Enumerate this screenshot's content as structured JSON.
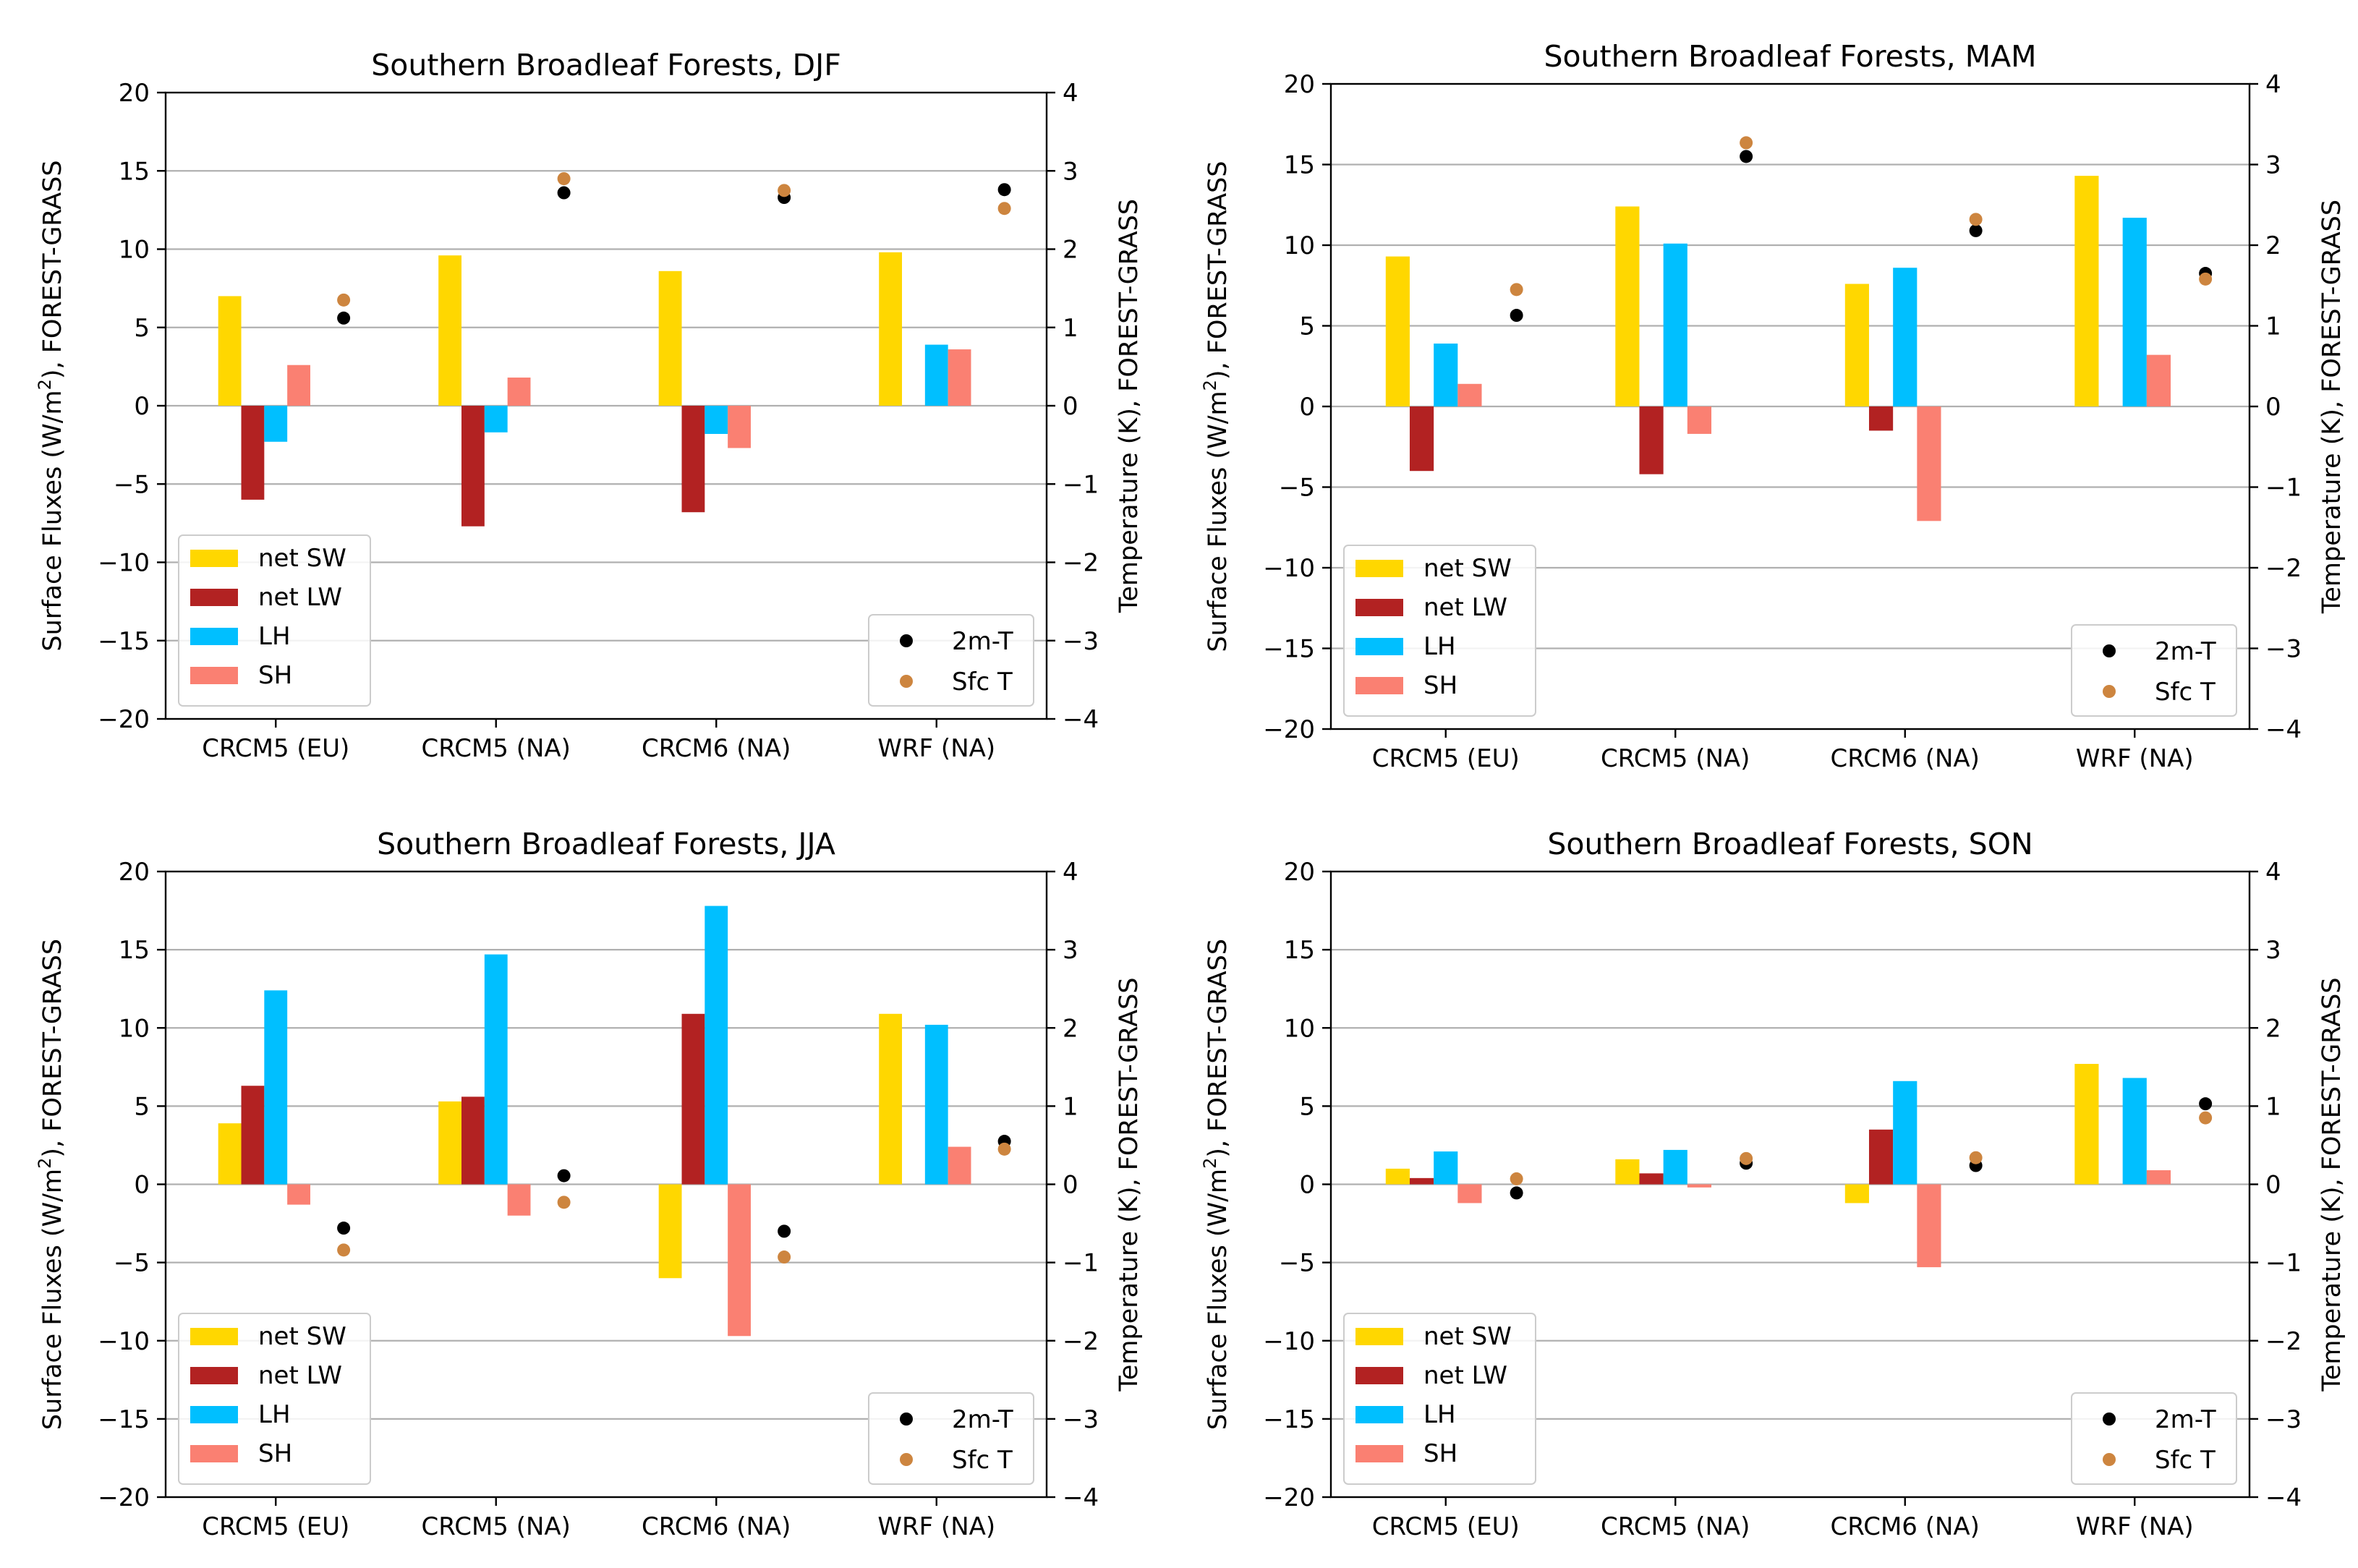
{
  "figure": {
    "category_labels": [
      "CRCM5 (EU)",
      "CRCM5 (NA)",
      "CRCM6 (NA)",
      "WRF (NA)"
    ],
    "left_axis_label_prefix": "Surface Fluxes (W/m",
    "left_axis_label_sup": "2",
    "left_axis_label_suffix": "), FOREST-GRASS",
    "right_axis_label": "Temperature (K), FOREST-GRASS",
    "series_colors": {
      "net SW": "#FFD700",
      "net LW": "#B22222",
      "LH": "#00BFFF",
      "SH": "#FA8072",
      "2m-T": "#000000",
      "Sfc T": "#CD853F"
    }
  },
  "chart_data": [
    {
      "type": "bar",
      "title": "Southern Broadleaf Forests, DJF",
      "categories": [
        "CRCM5 (EU)",
        "CRCM5 (NA)",
        "CRCM6 (NA)",
        "WRF (NA)"
      ],
      "ylabel": "Surface Fluxes (W/m2), FOREST-GRASS",
      "ylim": [
        -20,
        20
      ],
      "yticks": [
        "20",
        "15",
        "10",
        "5",
        "0",
        "−5",
        "−10",
        "−15",
        "−20"
      ],
      "y2label": "Temperature (K), FOREST-GRASS",
      "y2lim": [
        -4,
        4
      ],
      "y2ticks": [
        "4",
        "3",
        "2",
        "1",
        "0",
        "−1",
        "−2",
        "−3",
        "−4"
      ],
      "grid": "horizontal",
      "series": [
        {
          "name": "net SW",
          "values": [
            7.0,
            9.6,
            8.6,
            9.8
          ]
        },
        {
          "name": "net LW",
          "values": [
            -6.0,
            -7.7,
            -6.8,
            0
          ]
        },
        {
          "name": "LH",
          "values": [
            -2.3,
            -1.7,
            -1.8,
            3.9
          ]
        },
        {
          "name": "SH",
          "values": [
            2.6,
            1.8,
            -2.7,
            3.6
          ]
        }
      ],
      "points": [
        {
          "name": "2m-T",
          "values": [
            1.12,
            2.72,
            2.66,
            2.76
          ]
        },
        {
          "name": "Sfc T",
          "values": [
            1.35,
            2.9,
            2.75,
            2.52
          ]
        }
      ],
      "legend_bars": "lower-left",
      "legend_points": "lower-right"
    },
    {
      "type": "bar",
      "title": "Southern Broadleaf Forests, MAM",
      "categories": [
        "CRCM5 (EU)",
        "CRCM5 (NA)",
        "CRCM6 (NA)",
        "WRF (NA)"
      ],
      "ylabel": "Surface Fluxes (W/m2), FOREST-GRASS",
      "ylim": [
        -20,
        20
      ],
      "yticks": [
        "20",
        "15",
        "10",
        "5",
        "0",
        "−5",
        "−10",
        "−15",
        "−20"
      ],
      "y2label": "Temperature (K), FOREST-GRASS",
      "y2lim": [
        -4,
        4
      ],
      "y2ticks": [
        "4",
        "3",
        "2",
        "1",
        "0",
        "−1",
        "−2",
        "−3",
        "−4"
      ],
      "grid": "horizontal",
      "series": [
        {
          "name": "net SW",
          "values": [
            9.3,
            12.4,
            7.6,
            14.3
          ]
        },
        {
          "name": "net LW",
          "values": [
            -4.0,
            -4.2,
            -1.5,
            0
          ]
        },
        {
          "name": "LH",
          "values": [
            3.9,
            10.1,
            8.6,
            11.7
          ]
        },
        {
          "name": "SH",
          "values": [
            1.4,
            -1.7,
            -7.1,
            3.2
          ]
        }
      ],
      "points": [
        {
          "name": "2m-T",
          "values": [
            1.13,
            3.1,
            2.18,
            1.65
          ]
        },
        {
          "name": "Sfc T",
          "values": [
            1.45,
            3.27,
            2.32,
            1.58
          ]
        }
      ],
      "legend_bars": "lower-left",
      "legend_points": "lower-right"
    },
    {
      "type": "bar",
      "title": "Southern Broadleaf Forests, JJA",
      "categories": [
        "CRCM5 (EU)",
        "CRCM5 (NA)",
        "CRCM6 (NA)",
        "WRF (NA)"
      ],
      "ylabel": "Surface Fluxes (W/m2), FOREST-GRASS",
      "ylim": [
        -20,
        20
      ],
      "yticks": [
        "20",
        "15",
        "10",
        "5",
        "0",
        "−5",
        "−10",
        "−15",
        "−20"
      ],
      "y2label": "Temperature (K), FOREST-GRASS",
      "y2lim": [
        -4,
        4
      ],
      "y2ticks": [
        "4",
        "3",
        "2",
        "1",
        "0",
        "−1",
        "−2",
        "−3",
        "−4"
      ],
      "grid": "horizontal",
      "series": [
        {
          "name": "net SW",
          "values": [
            3.9,
            5.3,
            -6.0,
            10.9
          ]
        },
        {
          "name": "net LW",
          "values": [
            6.3,
            5.6,
            10.9,
            0
          ]
        },
        {
          "name": "LH",
          "values": [
            12.4,
            14.7,
            17.8,
            10.2
          ]
        },
        {
          "name": "SH",
          "values": [
            -1.3,
            -2.0,
            -9.7,
            2.4
          ]
        }
      ],
      "points": [
        {
          "name": "2m-T",
          "values": [
            -0.56,
            0.11,
            -0.6,
            0.55
          ]
        },
        {
          "name": "Sfc T",
          "values": [
            -0.84,
            -0.23,
            -0.93,
            0.45
          ]
        }
      ],
      "legend_bars": "lower-left",
      "legend_points": "lower-right"
    },
    {
      "type": "bar",
      "title": "Southern Broadleaf Forests, SON",
      "categories": [
        "CRCM5 (EU)",
        "CRCM5 (NA)",
        "CRCM6 (NA)",
        "WRF (NA)"
      ],
      "ylabel": "Surface Fluxes (W/m2), FOREST-GRASS",
      "ylim": [
        -20,
        20
      ],
      "yticks": [
        "20",
        "15",
        "10",
        "5",
        "0",
        "−5",
        "−10",
        "−15",
        "−20"
      ],
      "y2label": "Temperature (K), FOREST-GRASS",
      "y2lim": [
        -4,
        4
      ],
      "y2ticks": [
        "4",
        "3",
        "2",
        "1",
        "0",
        "−1",
        "−2",
        "−3",
        "−4"
      ],
      "grid": "horizontal",
      "series": [
        {
          "name": "net SW",
          "values": [
            1.0,
            1.6,
            -1.2,
            7.7
          ]
        },
        {
          "name": "net LW",
          "values": [
            0.4,
            0.7,
            3.5,
            0
          ]
        },
        {
          "name": "LH",
          "values": [
            2.1,
            2.2,
            6.6,
            6.8
          ]
        },
        {
          "name": "SH",
          "values": [
            -1.2,
            -0.2,
            -5.3,
            0.9
          ]
        }
      ],
      "points": [
        {
          "name": "2m-T",
          "values": [
            -0.11,
            0.27,
            0.24,
            1.03
          ]
        },
        {
          "name": "Sfc T",
          "values": [
            0.07,
            0.33,
            0.34,
            0.85
          ]
        }
      ],
      "legend_bars": "lower-left",
      "legend_points": "lower-right"
    }
  ]
}
